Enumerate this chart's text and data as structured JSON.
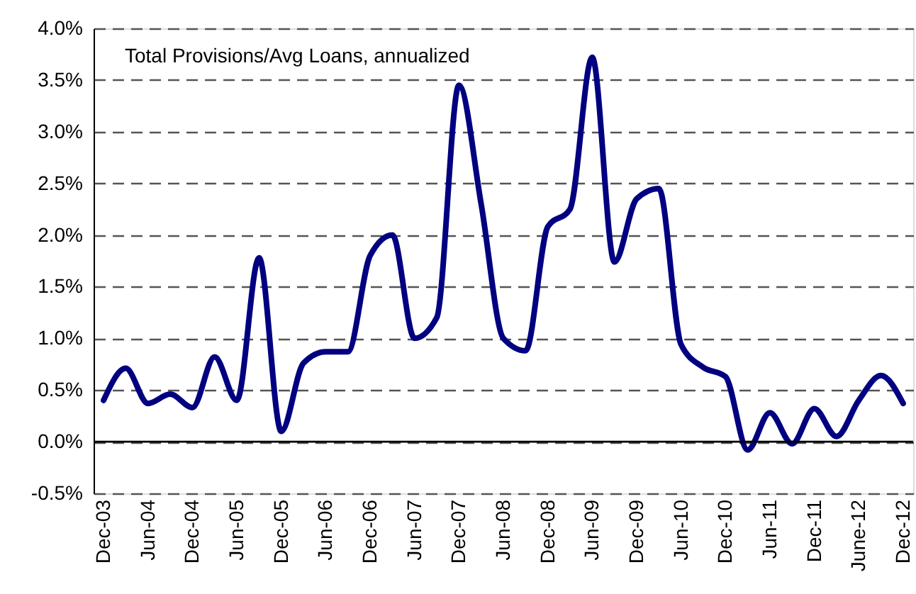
{
  "chart_data": {
    "type": "line",
    "title": "Total Provisions/Avg Loans, annualized",
    "categories": [
      "Dec-03",
      null,
      "Jun-04",
      null,
      "Dec-04",
      null,
      "Jun-05",
      null,
      "Dec-05",
      null,
      "Jun-06",
      null,
      "Dec-06",
      null,
      "Jun-07",
      null,
      "Dec-07",
      null,
      "Jun-08",
      null,
      "Dec-08",
      null,
      "Jun-09",
      null,
      "Dec-09",
      null,
      "Jun-10",
      null,
      "Dec-10",
      null,
      "Jun-11",
      null,
      "Dec-11",
      null,
      "June-12",
      null,
      "Dec-12"
    ],
    "series": [
      {
        "color": "#000080",
        "values": [
          0.4,
          0.71,
          0.37,
          0.46,
          0.33,
          0.82,
          0.4,
          1.78,
          0.1,
          0.76,
          0.87,
          0.87,
          1.8,
          2.0,
          1.0,
          1.2,
          3.45,
          2.3,
          1.0,
          0.88,
          2.08,
          2.25,
          3.72,
          1.74,
          2.35,
          2.45,
          0.94,
          0.72,
          0.63,
          -0.08,
          0.28,
          -0.02,
          0.32,
          0.05,
          0.4,
          0.64,
          0.37
        ]
      }
    ],
    "ylim": [
      -0.5,
      4.0
    ],
    "yticks": [
      {
        "value": -0.5,
        "label": "-0.5%"
      },
      {
        "value": 0,
        "label": "0.0%"
      },
      {
        "value": 0.5,
        "label": "0.5%"
      },
      {
        "value": 1.0,
        "label": "1.0%"
      },
      {
        "value": 1.5,
        "label": "1.5%"
      },
      {
        "value": 2.0,
        "label": "2.0%"
      },
      {
        "value": 2.5,
        "label": "2.5%"
      },
      {
        "value": 3.0,
        "label": "3.0%"
      },
      {
        "value": 3.5,
        "label": "3.5%"
      },
      {
        "value": 4.0,
        "label": "4.0%"
      }
    ],
    "grid": "y",
    "marker": "none",
    "line_style": "solid",
    "ref_lines": [
      {
        "axis": "y",
        "value": 0,
        "color": "#000000",
        "line_style": "solid"
      }
    ]
  }
}
